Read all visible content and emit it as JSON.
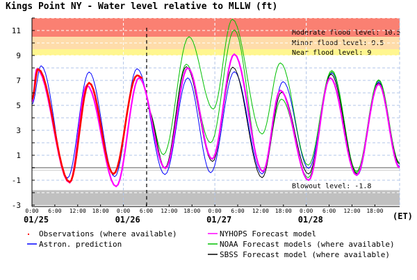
{
  "chart_data": {
    "type": "line",
    "title": "Kings Point NY  -  Water level relative to MLLW (ft)",
    "xlabel": "(ET)",
    "ylabel": "",
    "xunit": "hours since 01/25 0:00",
    "xlim": [
      0,
      96.5
    ],
    "ylim": [
      -3,
      12
    ],
    "y_ticks": [
      -3,
      -1,
      1,
      3,
      5,
      7,
      9,
      11
    ],
    "y_grid_step": 1,
    "x_ticks": [
      {
        "h": 0,
        "label": "0:00"
      },
      {
        "h": 6,
        "label": "6:00"
      },
      {
        "h": 12,
        "label": "12:00"
      },
      {
        "h": 18,
        "label": "18:00"
      },
      {
        "h": 24,
        "label": "0:00"
      },
      {
        "h": 30,
        "label": "6:00"
      },
      {
        "h": 36,
        "label": "12:00"
      },
      {
        "h": 42,
        "label": "18:00"
      },
      {
        "h": 48,
        "label": "0:00"
      },
      {
        "h": 54,
        "label": "6:00"
      },
      {
        "h": 60,
        "label": "12:00"
      },
      {
        "h": 66,
        "label": "18:00"
      },
      {
        "h": 72,
        "label": "0:00"
      },
      {
        "h": 78,
        "label": "6:00"
      },
      {
        "h": 84,
        "label": "12:00"
      },
      {
        "h": 90,
        "label": "18:00"
      }
    ],
    "date_labels": [
      {
        "h": 0,
        "label": "01/25"
      },
      {
        "h": 24,
        "label": "01/26"
      },
      {
        "h": 48,
        "label": "01/27"
      },
      {
        "h": 72,
        "label": "01/28"
      }
    ],
    "now_hour": 30.1,
    "grid": true,
    "bands": [
      {
        "name": "moderate",
        "label": "Moderate flood level: 10.5",
        "from": 10.5,
        "to": 12,
        "color": "#fa8072"
      },
      {
        "name": "minor",
        "label": "Minor flood level: 9.5",
        "from": 9.5,
        "to": 10.5,
        "color": "#fedcaa"
      },
      {
        "name": "near",
        "label": "Near flood level: 9",
        "from": 9,
        "to": 9.5,
        "color": "#fff68f"
      },
      {
        "name": "blowout",
        "label": "Blowout level: -1.8",
        "from": -3,
        "to": -1.8,
        "color": "#c0c0c0"
      }
    ],
    "series": [
      {
        "name": "Astron. prediction",
        "color": "#0000ff",
        "width": 1,
        "points": [
          [
            0,
            5.1
          ],
          [
            2.4,
            8.17
          ],
          [
            9.3,
            -0.83
          ],
          [
            15,
            7.67
          ],
          [
            21.7,
            -0.72
          ],
          [
            27.6,
            7.94
          ],
          [
            34.9,
            -0.55
          ],
          [
            40.9,
            7.2
          ],
          [
            46.9,
            -0.4
          ],
          [
            53.1,
            7.7
          ],
          [
            60.4,
            -0.5
          ],
          [
            65.9,
            6.9
          ],
          [
            72.6,
            -0.05
          ],
          [
            78.7,
            7.6
          ],
          [
            85.4,
            -0.6
          ],
          [
            91,
            6.9
          ],
          [
            96.5,
            0.1
          ]
        ]
      },
      {
        "name": "NOAA Forecast models (where available) A",
        "color": "#00c000",
        "width": 1,
        "points": [
          [
            30.3,
            4.8
          ],
          [
            34.5,
            1.05
          ],
          [
            41.2,
            10.5
          ],
          [
            47.6,
            4.7
          ],
          [
            52.6,
            11.9
          ],
          [
            60.4,
            2.7
          ],
          [
            65.2,
            8.4
          ],
          [
            72.5,
            0.2
          ],
          [
            78.7,
            7.8
          ],
          [
            85.2,
            -0.3
          ],
          [
            91,
            7.05
          ],
          [
            96.5,
            0.4
          ]
        ]
      },
      {
        "name": "NOAA Forecast models (where available) B",
        "color": "#00c000",
        "width": 1,
        "points": [
          [
            30.3,
            4.8
          ],
          [
            34.9,
            0.0
          ],
          [
            40.5,
            8.3
          ],
          [
            46.9,
            2.0
          ],
          [
            53.1,
            11.05
          ],
          [
            60.4,
            -0.3
          ],
          [
            65.5,
            5.5
          ],
          [
            72.5,
            -0.8
          ],
          [
            78.7,
            7.7
          ],
          [
            85.2,
            -0.4
          ],
          [
            91,
            7.0
          ],
          [
            96.5,
            0.3
          ]
        ]
      },
      {
        "name": "SBSS Forecast model (where available)",
        "color": "#000000",
        "width": 1,
        "points": [
          [
            30.3,
            4.8
          ],
          [
            34.9,
            0.0
          ],
          [
            40.5,
            8.1
          ],
          [
            47.4,
            0.5
          ],
          [
            52.7,
            8.06
          ],
          [
            60.4,
            -0.8
          ],
          [
            65.5,
            6.05
          ],
          [
            72.6,
            -0.5
          ],
          [
            78.5,
            7.5
          ],
          [
            85.3,
            -0.5
          ],
          [
            91,
            6.8
          ],
          [
            96.5,
            0.3
          ]
        ]
      },
      {
        "name": "NYHOPS Forecast model",
        "color": "#ff00ff",
        "width": 2.2,
        "points": [
          [
            0,
            5.3
          ],
          [
            1.3,
            7.9
          ],
          [
            9.9,
            -1.2
          ],
          [
            14.4,
            6.6
          ],
          [
            22.1,
            -1.5
          ],
          [
            28.1,
            7.2
          ],
          [
            35,
            -0.05
          ],
          [
            40.9,
            8.0
          ],
          [
            47.3,
            0.7
          ],
          [
            53.1,
            9.1
          ],
          [
            60.6,
            -0.3
          ],
          [
            65.2,
            6.2
          ],
          [
            72.6,
            -1.0
          ],
          [
            78.3,
            7.2
          ],
          [
            85.2,
            -0.6
          ],
          [
            91,
            6.7
          ],
          [
            96.5,
            0.0
          ]
        ]
      },
      {
        "name": "Observations (where available)",
        "color": "#ff0000",
        "width": 2.6,
        "points": [
          [
            0,
            5.5
          ],
          [
            1.6,
            7.9
          ],
          [
            9.9,
            -1.15
          ],
          [
            15,
            6.8
          ],
          [
            21.4,
            -0.5
          ],
          [
            27.6,
            7.4
          ],
          [
            29,
            7.2
          ]
        ]
      }
    ],
    "legend": [
      {
        "label": "Observations (where available)",
        "color": "#ff0000",
        "marker": "dot"
      },
      {
        "label": "Astron. prediction",
        "color": "#0000ff",
        "marker": "line"
      },
      {
        "label": "NYHOPS Forecast model",
        "color": "#ff00ff",
        "marker": "line"
      },
      {
        "label": "NOAA Forecast models (where available)",
        "color": "#00c000",
        "marker": "line"
      },
      {
        "label": "SBSS Forecast model (where available)",
        "color": "#000000",
        "marker": "line"
      }
    ],
    "legend_position": "bottom"
  }
}
